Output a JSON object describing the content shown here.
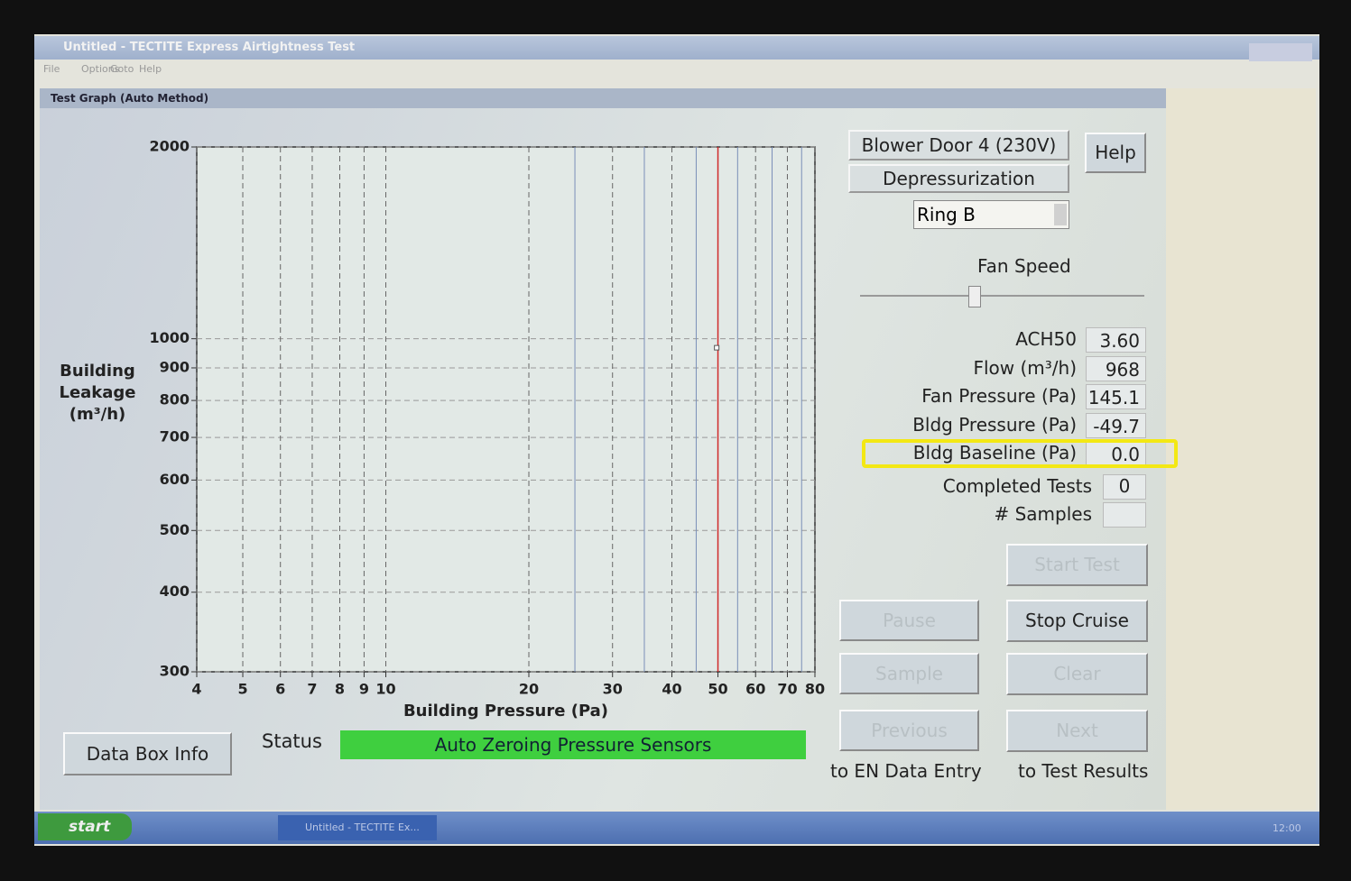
{
  "window": {
    "title": "Untitled - TECTITE Express Airtightness Test",
    "menu": [
      "File",
      "Options",
      "Goto",
      "Help"
    ],
    "panel_title": "Test Graph (Auto Method)"
  },
  "chart_data": {
    "type": "scatter",
    "x_label": "Building Pressure (Pa)",
    "y_label": [
      "Building",
      "Leakage",
      "(m³/h)"
    ],
    "xscale": "log",
    "yscale": "log",
    "xlim": [
      4,
      80
    ],
    "ylim": [
      300,
      2000
    ],
    "xticks": [
      4,
      5,
      6,
      7,
      8,
      9,
      10,
      20,
      30,
      40,
      50,
      60,
      70,
      80
    ],
    "yticks": [
      300,
      400,
      500,
      600,
      700,
      800,
      900,
      1000,
      2000
    ],
    "grid": true,
    "minor_xgrid": [
      25,
      35,
      45,
      55,
      65,
      75
    ],
    "minor_color": "#7a8fb8",
    "target_x": 50,
    "target_color": "#d02a2a",
    "series": [
      {
        "color": "#ffffff",
        "x": [
          49.7
        ],
        "values": [
          968
        ]
      }
    ]
  },
  "controls": {
    "device": "Blower Door 4 (230V)",
    "help": "Help",
    "mode": "Depressurization",
    "ring": "Ring B",
    "fan_speed": "Fan Speed",
    "readouts": [
      {
        "label": "ACH50",
        "value": "3.60"
      },
      {
        "label": "Flow (m³/h)",
        "value": "968"
      },
      {
        "label": "Fan Pressure (Pa)",
        "value": "145.1"
      },
      {
        "label": "Bldg Pressure (Pa)",
        "value": "-49.7"
      },
      {
        "label": "Bldg Baseline (Pa)",
        "value": "0.0"
      }
    ],
    "completed_tests": {
      "label": "Completed Tests",
      "value": "0"
    },
    "samples": {
      "label": "# Samples"
    },
    "buttons": {
      "start_test": "Start Test",
      "pause": "Pause",
      "stop_cruise": "Stop Cruise",
      "sample": "Sample",
      "clear": "Clear",
      "previous": "Previous",
      "next": "Next"
    },
    "nav": [
      "to EN Data Entry",
      "to Test Results"
    ]
  },
  "status": {
    "label": "Status",
    "text": "Auto Zeroing Pressure Sensors"
  },
  "data_box_info": "Data Box Info",
  "taskbar": {
    "start": "start",
    "task": "Untitled - TECTITE Ex...",
    "clock": "12:00"
  }
}
